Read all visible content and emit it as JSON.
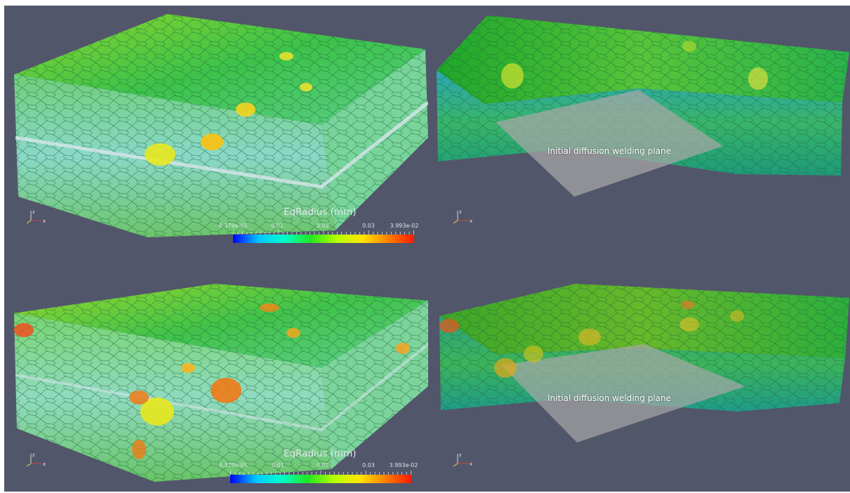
{
  "colorbar": {
    "title": "EqRadius (mm)",
    "ticks": [
      "4.379e-05",
      "0.01",
      "0.02",
      "0.03",
      "3.993e-02"
    ],
    "range": [
      4.379e-05,
      0.03993
    ],
    "colormap": [
      "#0000ff",
      "#00c8ff",
      "#00ffc8",
      "#22e622",
      "#b4ff00",
      "#ffe600",
      "#ff8000",
      "#ff1a00"
    ]
  },
  "annotations": {
    "welding_plane_label": "Initial diffusion welding plane"
  },
  "colors": {
    "background": "#52566a",
    "grain_green": "#3fc23c",
    "grain_yellow": "#e8e81e",
    "grain_orange": "#f07a16",
    "grain_cyan": "#5fd6c8",
    "plane": "#a8a8a8"
  },
  "axes_icon": {
    "labels": [
      "z",
      "y",
      "x"
    ]
  }
}
